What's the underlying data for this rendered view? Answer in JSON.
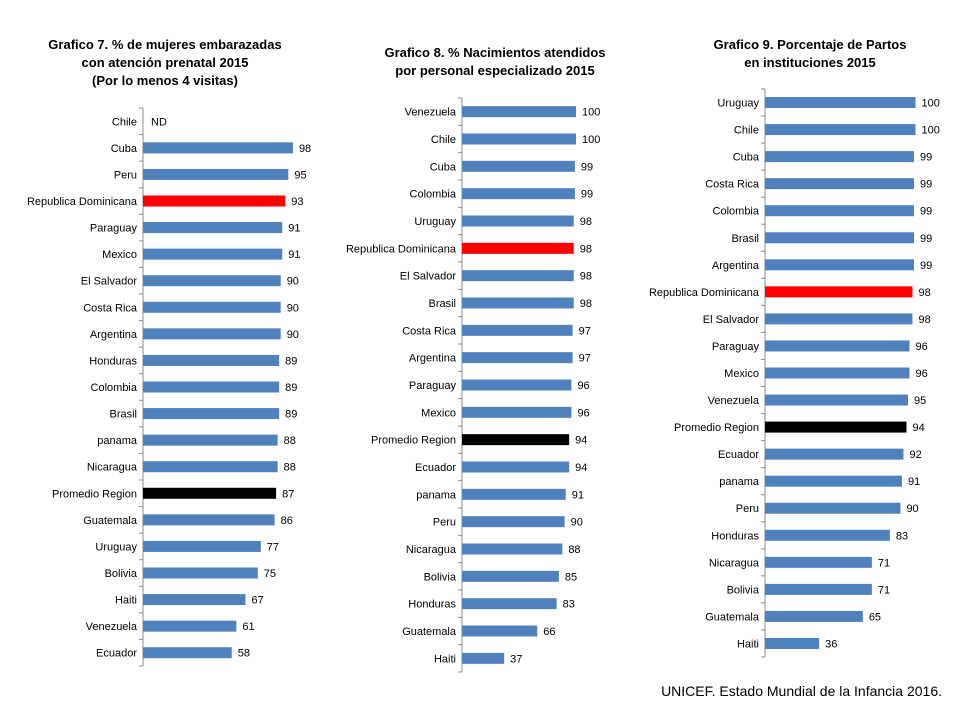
{
  "colors": {
    "bar": "#4f81bd",
    "highlight": "#ff0000",
    "average": "#000000",
    "axis": "#8c8c8c"
  },
  "source": "UNICEF. Estado Mundial de la Infancia 2016.",
  "chart_data": [
    {
      "type": "bar",
      "orientation": "horizontal",
      "title": "Grafico 7. % de mujeres embarazadas\ncon atención prenatal 2015\n(Por lo menos 4 visitas)",
      "categories": [
        "Chile",
        "Cuba",
        "Peru",
        "Republica Dominicana",
        "Paraguay",
        "Mexico",
        "El Salvador",
        "Costa Rica",
        "Argentina",
        "Honduras",
        "Colombia",
        "Brasil",
        "panama",
        "Nicaragua",
        "Promedio Region",
        "Guatemala",
        "Uruguay",
        "Bolivia",
        "Haiti",
        "Venezuela",
        "Ecuador"
      ],
      "values": [
        null,
        98,
        95,
        93,
        91,
        91,
        90,
        90,
        90,
        89,
        89,
        89,
        88,
        88,
        87,
        86,
        77,
        75,
        67,
        61,
        58
      ],
      "value_labels": [
        "ND",
        "98",
        "95",
        "93",
        "91",
        "91",
        "90",
        "90",
        "90",
        "89",
        "89",
        "89",
        "88",
        "88",
        "87",
        "86",
        "77",
        "75",
        "67",
        "61",
        "58"
      ],
      "highlight": {
        "Republica Dominicana": "highlight",
        "Promedio Region": "average"
      },
      "xlim": [
        0,
        100
      ],
      "grid": false
    },
    {
      "type": "bar",
      "orientation": "horizontal",
      "title": "Grafico 8. % Nacimientos atendidos\npor personal  especializado 2015",
      "categories": [
        "Venezuela",
        "Chile",
        "Cuba",
        "Colombia",
        "Uruguay",
        "Republica Dominicana",
        "El Salvador",
        "Brasil",
        "Costa Rica",
        "Argentina",
        "Paraguay",
        "Mexico",
        "Promedio Region",
        "Ecuador",
        "panama",
        "Peru",
        "Nicaragua",
        "Bolivia",
        "Honduras",
        "Guatemala",
        "Haiti"
      ],
      "values": [
        100,
        100,
        99,
        99,
        98,
        98,
        98,
        98,
        97,
        97,
        96,
        96,
        94,
        94,
        91,
        90,
        88,
        85,
        83,
        66,
        37
      ],
      "value_labels": [
        "100",
        "100",
        "99",
        "99",
        "98",
        "98",
        "98",
        "98",
        "97",
        "97",
        "96",
        "96",
        "94",
        "94",
        "91",
        "90",
        "88",
        "85",
        "83",
        "66",
        "37"
      ],
      "highlight": {
        "Republica Dominicana": "highlight",
        "Promedio Region": "average"
      },
      "xlim": [
        0,
        100
      ],
      "grid": false
    },
    {
      "type": "bar",
      "orientation": "horizontal",
      "title": "Grafico 9. Porcentaje de Partos\nen instituciones 2015",
      "categories": [
        "Uruguay",
        "Chile",
        "Cuba",
        "Costa Rica",
        "Colombia",
        "Brasil",
        "Argentina",
        "Republica Dominicana",
        "El Salvador",
        "Paraguay",
        "Mexico",
        "Venezuela",
        "Promedio Region",
        "Ecuador",
        "panama",
        "Peru",
        "Honduras",
        "Nicaragua",
        "Bolivia",
        "Guatemala",
        "Haiti"
      ],
      "values": [
        100,
        100,
        99,
        99,
        99,
        99,
        99,
        98,
        98,
        96,
        96,
        95,
        94,
        92,
        91,
        90,
        83,
        71,
        71,
        65,
        36
      ],
      "value_labels": [
        "100",
        "100",
        "99",
        "99",
        "99",
        "99",
        "99",
        "98",
        "98",
        "96",
        "96",
        "95",
        "94",
        "92",
        "91",
        "90",
        "83",
        "71",
        "71",
        "65",
        "36"
      ],
      "highlight": {
        "Republica Dominicana": "highlight",
        "Promedio Region": "average"
      },
      "xlim": [
        0,
        100
      ],
      "grid": false
    }
  ]
}
